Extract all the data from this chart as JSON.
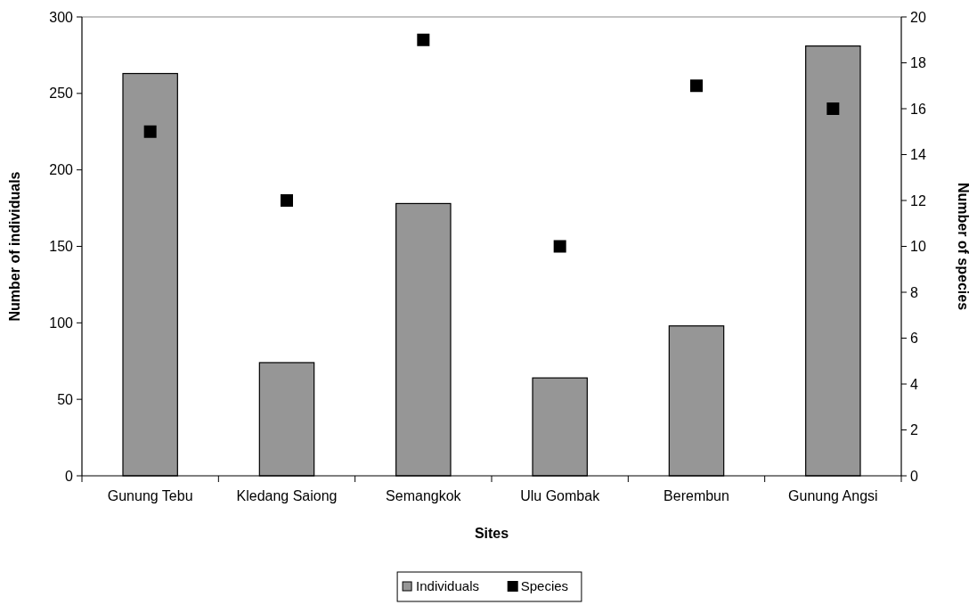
{
  "chart_data": {
    "type": "bar",
    "xlabel": "Sites",
    "ylabel": "Number of individuals",
    "y2label": "Number of species",
    "categories": [
      "Gunung Tebu",
      "Kledang Saiong",
      "Semangkok",
      "Ulu Gombak",
      "Berembun",
      "Gunung Angsi"
    ],
    "series": [
      {
        "name": "Individuals",
        "color": "#969696",
        "values": [
          263,
          74,
          178,
          64,
          98,
          281
        ]
      },
      {
        "name": "Species",
        "type": "scatter",
        "axis": "y2",
        "color": "#000000",
        "marker": "square",
        "x": [
          "Gunung Tebu",
          "Kledang Saiong",
          "Semangkok",
          "Ulu Gombak",
          "Berembun",
          "Gunung Angsi"
        ],
        "values": [
          15,
          12,
          19,
          10,
          17,
          16
        ]
      }
    ],
    "ylim": [
      0,
      300
    ],
    "yticks": [
      0,
      50,
      100,
      150,
      200,
      250,
      300
    ],
    "y2lim": [
      0,
      20
    ],
    "y2ticks": [
      0,
      2,
      4,
      6,
      8,
      10,
      12,
      14,
      16,
      18,
      20
    ],
    "grid": false,
    "legend": "bottom"
  }
}
